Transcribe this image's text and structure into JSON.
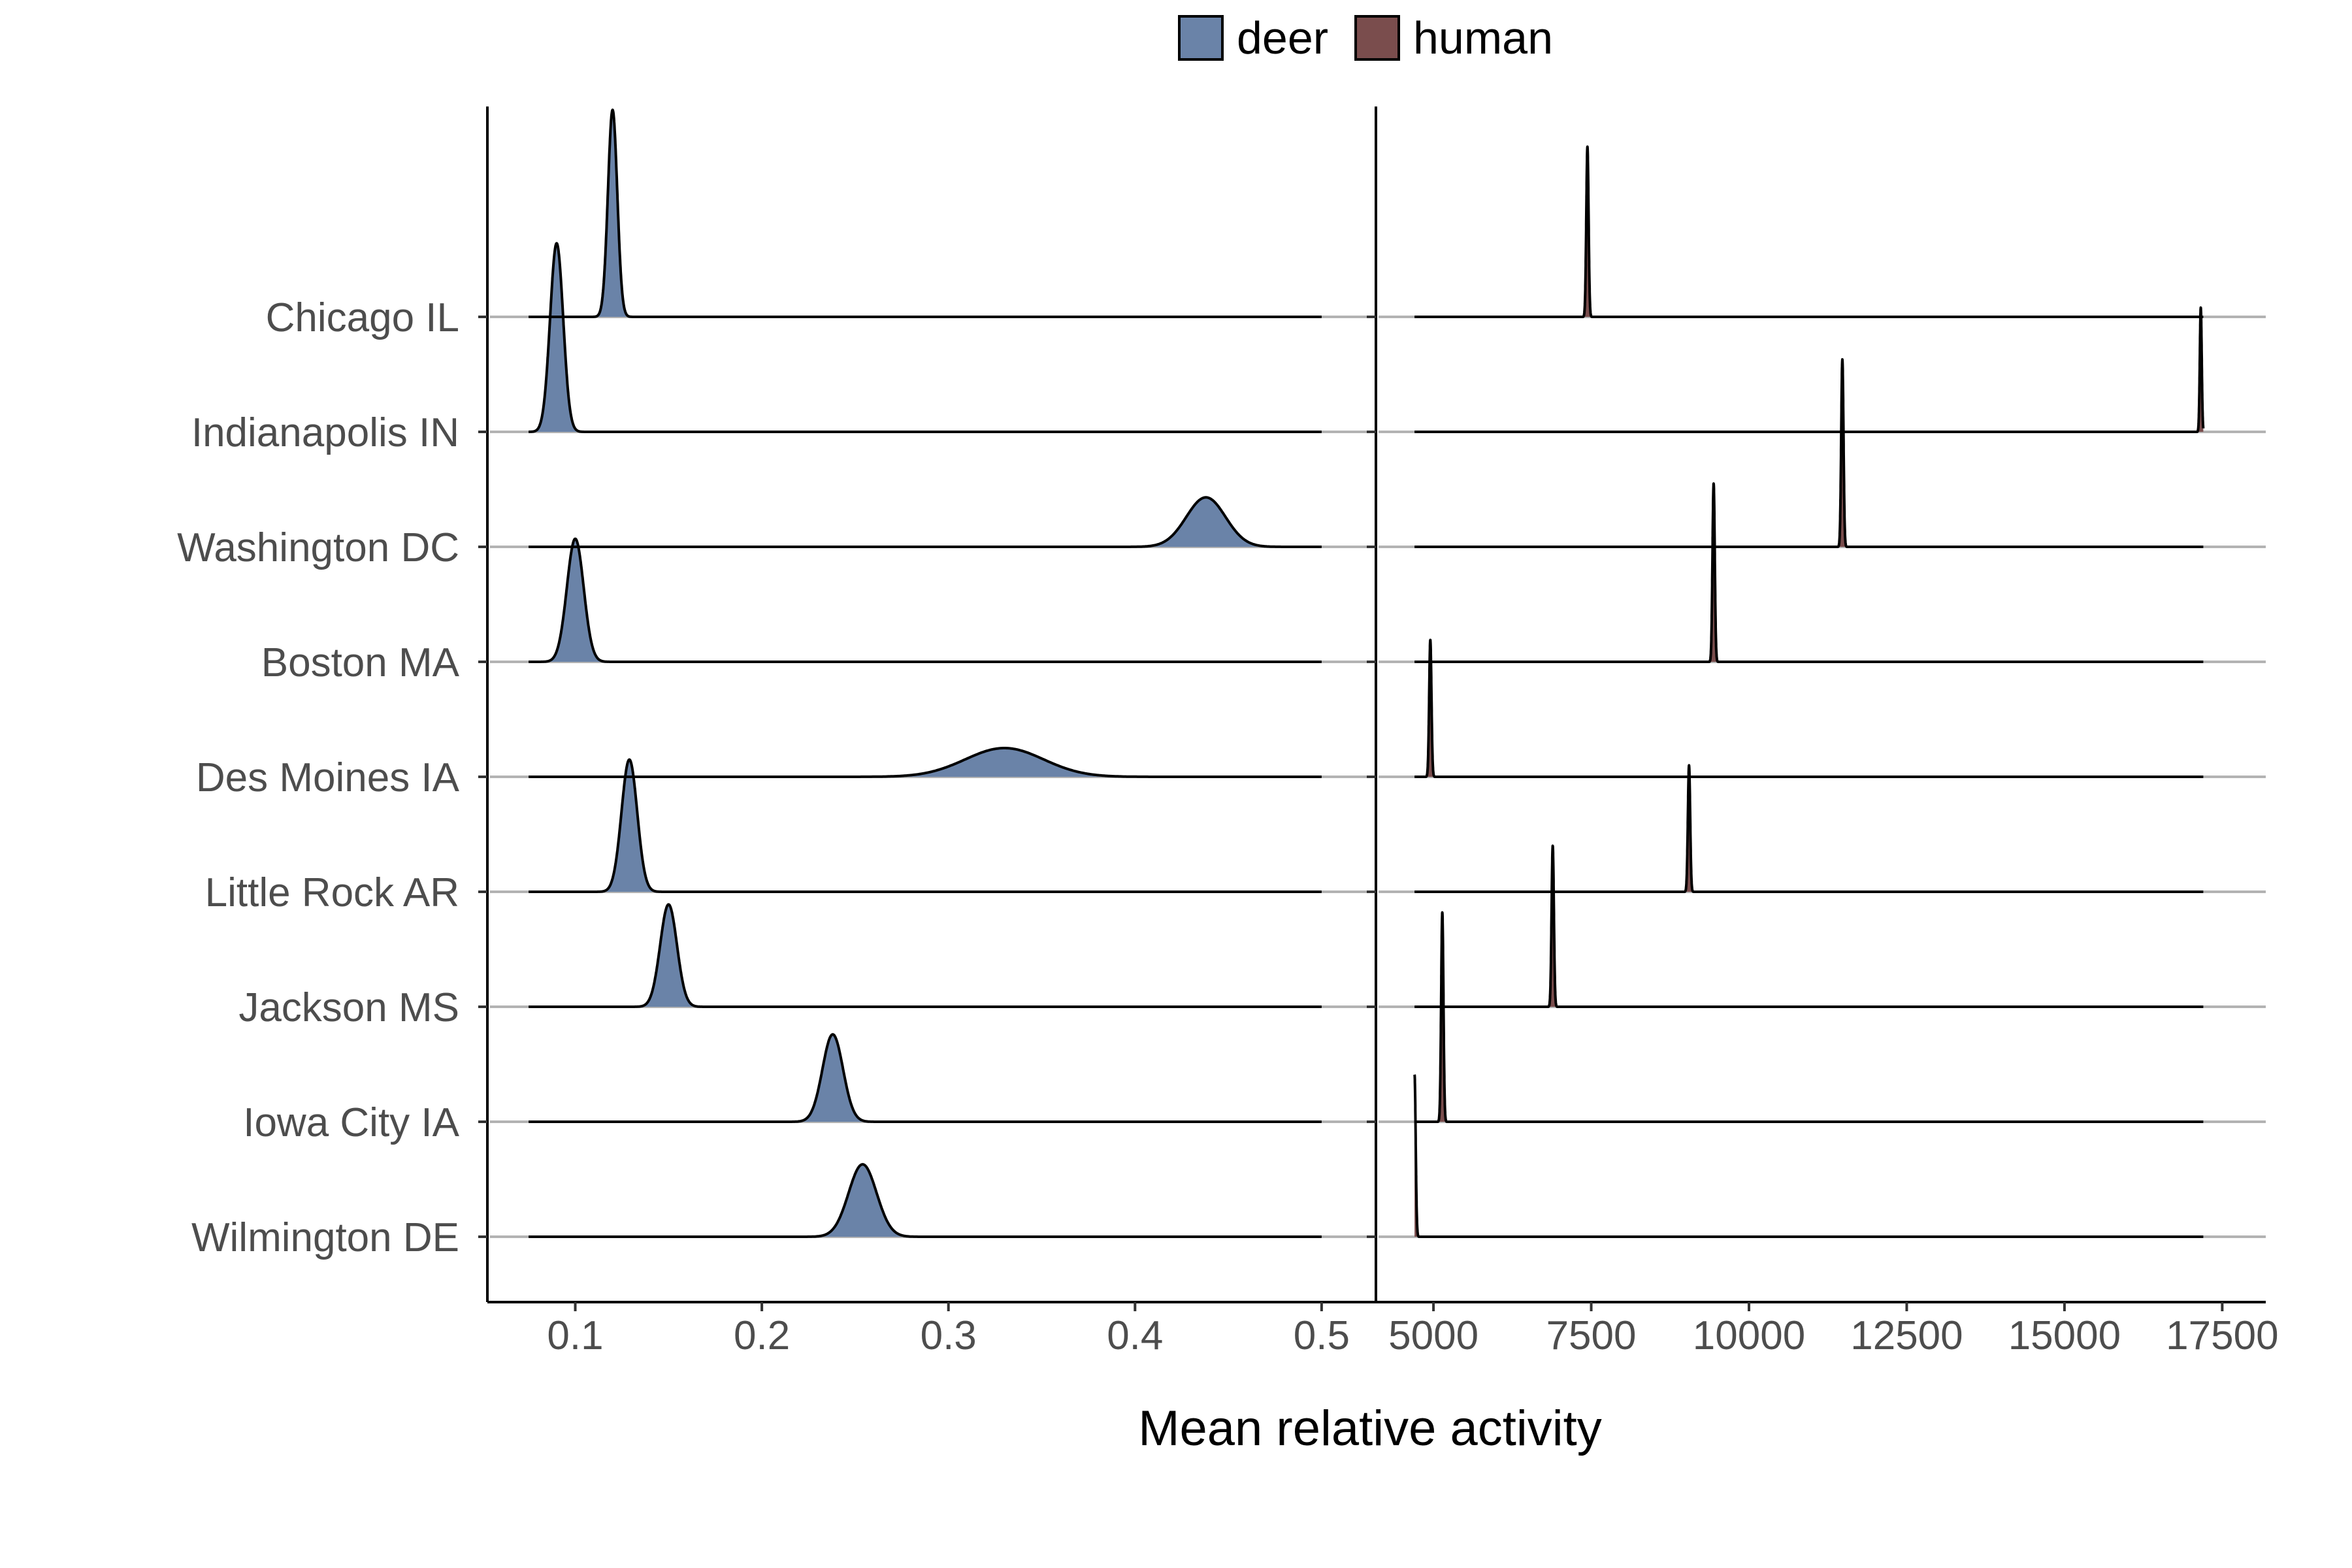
{
  "chart_data": {
    "type": "ridgeline",
    "xlabel": "Mean relative activity",
    "categories": [
      "Chicago IL",
      "Indianapolis IN",
      "Washington DC",
      "Boston MA",
      "Des Moines IA",
      "Little Rock AR",
      "Jackson MS",
      "Iowa City IA",
      "Wilmington DE"
    ],
    "legend": {
      "position": "top",
      "items": [
        {
          "label": "deer",
          "color": "#6a83a8"
        },
        {
          "label": "human",
          "color": "#7a4d4d"
        }
      ]
    },
    "grid": true,
    "panels": [
      {
        "species": "deer",
        "xlim": [
          0.055,
          0.52
        ],
        "xticks": [
          0.1,
          0.2,
          0.3,
          0.4,
          0.5
        ],
        "xtick_labels": [
          "0.1",
          "0.2",
          "0.3",
          "0.4",
          "0.5"
        ],
        "range": [
          0.075,
          0.5
        ],
        "series": [
          {
            "category": "Chicago IL",
            "mean": 0.12,
            "sd": 0.0025,
            "height": 1.8
          },
          {
            "category": "Indianapolis IN",
            "mean": 0.09,
            "sd": 0.0035,
            "height": 1.64
          },
          {
            "category": "Washington DC",
            "mean": 0.438,
            "sd": 0.0105,
            "height": 0.43
          },
          {
            "category": "Boston MA",
            "mean": 0.1,
            "sd": 0.0045,
            "height": 1.07
          },
          {
            "category": "Des Moines IA",
            "mean": 0.33,
            "sd": 0.021,
            "height": 0.25
          },
          {
            "category": "Little Rock AR",
            "mean": 0.129,
            "sd": 0.0042,
            "height": 1.15
          },
          {
            "category": "Jackson MS",
            "mean": 0.15,
            "sd": 0.0045,
            "height": 0.89
          },
          {
            "category": "Iowa City IA",
            "mean": 0.238,
            "sd": 0.0055,
            "height": 0.76
          },
          {
            "category": "Wilmington DE",
            "mean": 0.254,
            "sd": 0.0075,
            "height": 0.63
          }
        ]
      },
      {
        "species": "human",
        "xlim": [
          4150,
          17900
        ],
        "xticks": [
          5000,
          7500,
          10000,
          12500,
          15000,
          17500
        ],
        "xtick_labels": [
          "5000",
          "7500",
          "10000",
          "12500",
          "15000",
          "17500"
        ],
        "range": [
          4700,
          17200
        ],
        "series": [
          {
            "category": "Chicago IL",
            "mean": 7440,
            "sd": 18,
            "height": 1.48
          },
          {
            "category": "Indianapolis IN",
            "mean": 17160,
            "sd": 15,
            "height": 1.08
          },
          {
            "category": "Washington DC",
            "mean": 11480,
            "sd": 18,
            "height": 1.63
          },
          {
            "category": "Boston MA",
            "mean": 9440,
            "sd": 18,
            "height": 1.55
          },
          {
            "category": "Des Moines IA",
            "mean": 4950,
            "sd": 18,
            "height": 1.19
          },
          {
            "category": "Little Rock AR",
            "mean": 9050,
            "sd": 18,
            "height": 1.1
          },
          {
            "category": "Jackson MS",
            "mean": 6890,
            "sd": 18,
            "height": 1.4
          },
          {
            "category": "Iowa City IA",
            "mean": 5140,
            "sd": 18,
            "height": 1.82
          },
          {
            "category": "Wilmington DE",
            "mean": 4700,
            "sd": 18,
            "height": 1.41
          }
        ]
      }
    ]
  }
}
